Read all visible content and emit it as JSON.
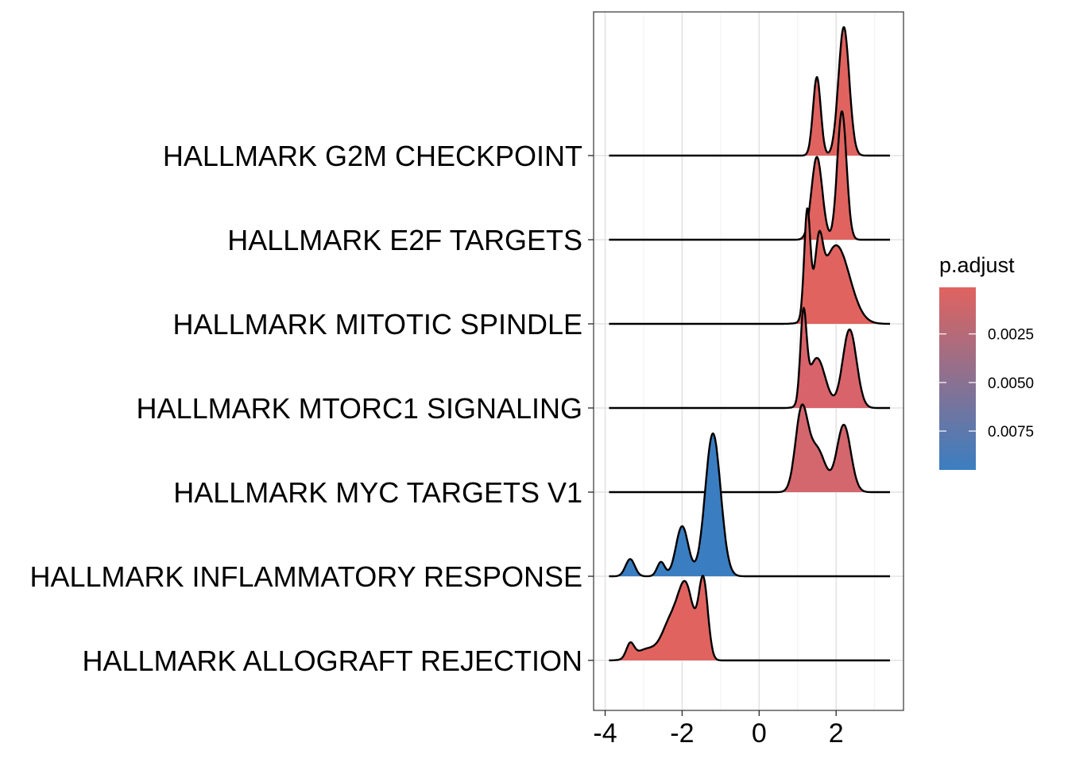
{
  "chart_data": {
    "type": "ridgeline",
    "xlabel": "",
    "ylabel": "",
    "xlim": [
      -4.3,
      3.75
    ],
    "x_ticks": [
      -4,
      -2,
      0,
      2
    ],
    "x_tick_labels": [
      "-4",
      "-2",
      "0",
      "2"
    ],
    "grid": true,
    "ridge_max_height_ratio": 1.7,
    "density_range": [
      -3.9,
      3.4
    ],
    "series": [
      {
        "name": "HALLMARK G2M CHECKPOINT",
        "p_adjust": 0.0001,
        "fill": "#E0635F",
        "peaks": [
          [
            1.5,
            0.1,
            0.55
          ],
          [
            2.2,
            0.14,
            0.9
          ]
        ]
      },
      {
        "name": "HALLMARK E2F TARGETS",
        "p_adjust": 0.0001,
        "fill": "#E0635F",
        "peaks": [
          [
            1.5,
            0.14,
            0.58
          ],
          [
            2.15,
            0.12,
            0.9
          ]
        ]
      },
      {
        "name": "HALLMARK MITOTIC SPINDLE",
        "p_adjust": 0.0001,
        "fill": "#E0635F",
        "peaks": [
          [
            1.25,
            0.08,
            0.75
          ],
          [
            1.55,
            0.1,
            0.4
          ],
          [
            2.0,
            0.35,
            0.55
          ]
        ]
      },
      {
        "name": "HALLMARK MTORC1 SIGNALING",
        "p_adjust": 0.0012,
        "fill": "#D8636B",
        "peaks": [
          [
            1.15,
            0.08,
            0.6
          ],
          [
            1.5,
            0.22,
            0.35
          ],
          [
            2.35,
            0.18,
            0.55
          ]
        ]
      },
      {
        "name": "HALLMARK MYC TARGETS V1",
        "p_adjust": 0.0018,
        "fill": "#D4666D",
        "peaks": [
          [
            1.1,
            0.16,
            0.55
          ],
          [
            1.5,
            0.22,
            0.3
          ],
          [
            2.2,
            0.18,
            0.47
          ]
        ]
      },
      {
        "name": "HALLMARK INFLAMMATORY RESPONSE",
        "p_adjust": 0.0095,
        "fill": "#3A7EC1",
        "peaks": [
          [
            -3.35,
            0.12,
            0.12
          ],
          [
            -2.55,
            0.1,
            0.1
          ],
          [
            -2.0,
            0.16,
            0.35
          ],
          [
            -1.2,
            0.2,
            1.0
          ]
        ]
      },
      {
        "name": "HALLMARK ALLOGRAFT REJECTION",
        "p_adjust": 0.0001,
        "fill": "#E0635F",
        "peaks": [
          [
            -3.35,
            0.1,
            0.1
          ],
          [
            -2.9,
            0.3,
            0.08
          ],
          [
            -2.3,
            0.22,
            0.25
          ],
          [
            -1.9,
            0.2,
            0.5
          ],
          [
            -1.45,
            0.12,
            0.55
          ]
        ]
      }
    ],
    "legend": {
      "title": "p.adjust",
      "placement": "right",
      "tick_values": [
        0.0025,
        0.005,
        0.0075
      ],
      "tick_labels": [
        "0.0025",
        "0.0050",
        "0.0075"
      ],
      "range": [
        0.0001,
        0.0095
      ],
      "low_color": "#E0635F",
      "high_color": "#3A7EC1"
    }
  }
}
